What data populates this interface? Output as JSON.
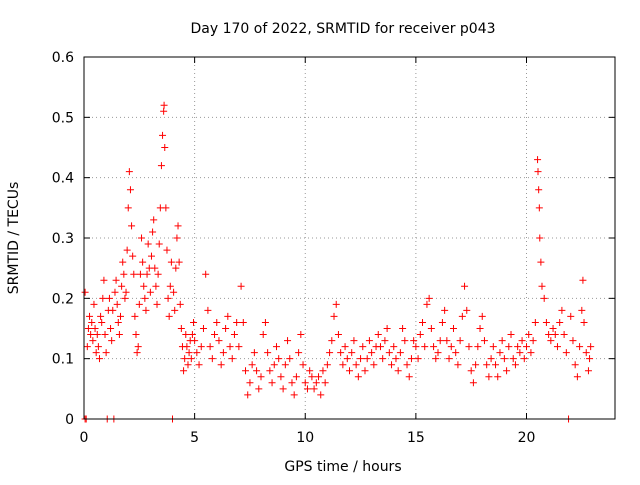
{
  "chart_data": {
    "type": "scatter",
    "title": "Day 170 of 2022, SRMTID for receiver p043",
    "xlabel": "GPS time / hours",
    "ylabel": "SRMTID / TECUs",
    "xlim": [
      0,
      24
    ],
    "ylim": [
      0,
      0.6
    ],
    "xticks": [
      0,
      5,
      10,
      15,
      20
    ],
    "yticks": [
      0,
      0.1,
      0.2,
      0.3,
      0.4,
      0.5,
      0.6
    ],
    "xtick_labels": [
      "0",
      "5",
      "10",
      "15",
      "20"
    ],
    "ytick_labels": [
      "0",
      "0.1",
      "0.2",
      "0.3",
      "0.4",
      "0.5",
      "0.6"
    ],
    "grid": true,
    "marker": "+",
    "series": [
      {
        "name": "SRMTID",
        "color": "#ff0000",
        "points": [
          [
            0.05,
            0.21
          ],
          [
            0.05,
            0.0
          ],
          [
            0.1,
            0.0
          ],
          [
            0.15,
            0.12
          ],
          [
            0.2,
            0.15
          ],
          [
            0.25,
            0.17
          ],
          [
            0.3,
            0.14
          ],
          [
            0.35,
            0.16
          ],
          [
            0.4,
            0.13
          ],
          [
            0.45,
            0.19
          ],
          [
            0.5,
            0.15
          ],
          [
            0.55,
            0.11
          ],
          [
            0.6,
            0.14
          ],
          [
            0.65,
            0.12
          ],
          [
            0.7,
            0.1
          ],
          [
            0.75,
            0.17
          ],
          [
            0.8,
            0.16
          ],
          [
            0.85,
            0.2
          ],
          [
            0.9,
            0.23
          ],
          [
            0.95,
            0.14
          ],
          [
            1.0,
            0.11
          ],
          [
            1.05,
            0.0
          ],
          [
            1.1,
            0.18
          ],
          [
            1.15,
            0.2
          ],
          [
            1.2,
            0.15
          ],
          [
            1.25,
            0.13
          ],
          [
            1.3,
            0.18
          ],
          [
            1.35,
            0.0
          ],
          [
            1.4,
            0.21
          ],
          [
            1.45,
            0.23
          ],
          [
            1.5,
            0.19
          ],
          [
            1.55,
            0.16
          ],
          [
            1.6,
            0.14
          ],
          [
            1.65,
            0.17
          ],
          [
            1.7,
            0.22
          ],
          [
            1.75,
            0.26
          ],
          [
            1.8,
            0.24
          ],
          [
            1.85,
            0.2
          ],
          [
            1.9,
            0.21
          ],
          [
            1.95,
            0.28
          ],
          [
            2.0,
            0.35
          ],
          [
            2.05,
            0.41
          ],
          [
            2.1,
            0.38
          ],
          [
            2.15,
            0.32
          ],
          [
            2.2,
            0.27
          ],
          [
            2.25,
            0.24
          ],
          [
            2.3,
            0.17
          ],
          [
            2.35,
            0.14
          ],
          [
            2.4,
            0.11
          ],
          [
            2.45,
            0.12
          ],
          [
            2.5,
            0.19
          ],
          [
            2.55,
            0.24
          ],
          [
            2.6,
            0.3
          ],
          [
            2.65,
            0.26
          ],
          [
            2.7,
            0.22
          ],
          [
            2.75,
            0.2
          ],
          [
            2.8,
            0.18
          ],
          [
            2.85,
            0.24
          ],
          [
            2.9,
            0.29
          ],
          [
            2.95,
            0.25
          ],
          [
            3.0,
            0.21
          ],
          [
            3.05,
            0.27
          ],
          [
            3.1,
            0.31
          ],
          [
            3.15,
            0.33
          ],
          [
            3.2,
            0.25
          ],
          [
            3.25,
            0.22
          ],
          [
            3.3,
            0.19
          ],
          [
            3.35,
            0.24
          ],
          [
            3.4,
            0.29
          ],
          [
            3.45,
            0.35
          ],
          [
            3.5,
            0.42
          ],
          [
            3.55,
            0.47
          ],
          [
            3.6,
            0.51
          ],
          [
            3.62,
            0.52
          ],
          [
            3.65,
            0.45
          ],
          [
            3.7,
            0.35
          ],
          [
            3.75,
            0.28
          ],
          [
            3.8,
            0.2
          ],
          [
            3.85,
            0.17
          ],
          [
            3.9,
            0.22
          ],
          [
            3.95,
            0.26
          ],
          [
            4.0,
            0.0
          ],
          [
            4.05,
            0.21
          ],
          [
            4.1,
            0.18
          ],
          [
            4.15,
            0.25
          ],
          [
            4.2,
            0.3
          ],
          [
            4.25,
            0.32
          ],
          [
            4.3,
            0.26
          ],
          [
            4.35,
            0.19
          ],
          [
            4.4,
            0.15
          ],
          [
            4.45,
            0.12
          ],
          [
            4.5,
            0.08
          ],
          [
            4.55,
            0.1
          ],
          [
            4.6,
            0.14
          ],
          [
            4.65,
            0.12
          ],
          [
            4.7,
            0.09
          ],
          [
            4.75,
            0.11
          ],
          [
            4.8,
            0.13
          ],
          [
            4.85,
            0.1
          ],
          [
            4.9,
            0.14
          ],
          [
            4.95,
            0.16
          ],
          [
            5.0,
            0.13
          ],
          [
            5.1,
            0.11
          ],
          [
            5.2,
            0.09
          ],
          [
            5.3,
            0.12
          ],
          [
            5.4,
            0.15
          ],
          [
            5.5,
            0.24
          ],
          [
            5.6,
            0.18
          ],
          [
            5.7,
            0.12
          ],
          [
            5.8,
            0.1
          ],
          [
            5.9,
            0.14
          ],
          [
            6.0,
            0.16
          ],
          [
            6.1,
            0.13
          ],
          [
            6.2,
            0.09
          ],
          [
            6.3,
            0.11
          ],
          [
            6.4,
            0.15
          ],
          [
            6.5,
            0.17
          ],
          [
            6.6,
            0.12
          ],
          [
            6.7,
            0.1
          ],
          [
            6.8,
            0.14
          ],
          [
            6.9,
            0.16
          ],
          [
            7.0,
            0.12
          ],
          [
            7.1,
            0.22
          ],
          [
            7.2,
            0.16
          ],
          [
            7.3,
            0.08
          ],
          [
            7.4,
            0.04
          ],
          [
            7.5,
            0.06
          ],
          [
            7.6,
            0.09
          ],
          [
            7.7,
            0.11
          ],
          [
            7.8,
            0.08
          ],
          [
            7.9,
            0.05
          ],
          [
            8.0,
            0.07
          ],
          [
            8.1,
            0.14
          ],
          [
            8.2,
            0.16
          ],
          [
            8.3,
            0.11
          ],
          [
            8.4,
            0.08
          ],
          [
            8.5,
            0.06
          ],
          [
            8.6,
            0.09
          ],
          [
            8.7,
            0.12
          ],
          [
            8.8,
            0.1
          ],
          [
            8.9,
            0.07
          ],
          [
            9.0,
            0.05
          ],
          [
            9.1,
            0.09
          ],
          [
            9.2,
            0.13
          ],
          [
            9.3,
            0.1
          ],
          [
            9.4,
            0.06
          ],
          [
            9.5,
            0.04
          ],
          [
            9.6,
            0.07
          ],
          [
            9.7,
            0.11
          ],
          [
            9.8,
            0.14
          ],
          [
            9.9,
            0.09
          ],
          [
            10.0,
            0.06
          ],
          [
            10.1,
            0.05
          ],
          [
            10.2,
            0.08
          ],
          [
            10.3,
            0.07
          ],
          [
            10.4,
            0.05
          ],
          [
            10.5,
            0.06
          ],
          [
            10.6,
            0.07
          ],
          [
            10.7,
            0.04
          ],
          [
            10.8,
            0.08
          ],
          [
            10.9,
            0.06
          ],
          [
            11.0,
            0.09
          ],
          [
            11.1,
            0.11
          ],
          [
            11.2,
            0.13
          ],
          [
            11.3,
            0.17
          ],
          [
            11.4,
            0.19
          ],
          [
            11.5,
            0.14
          ],
          [
            11.6,
            0.11
          ],
          [
            11.7,
            0.09
          ],
          [
            11.8,
            0.12
          ],
          [
            11.9,
            0.1
          ],
          [
            12.0,
            0.08
          ],
          [
            12.1,
            0.11
          ],
          [
            12.2,
            0.13
          ],
          [
            12.3,
            0.09
          ],
          [
            12.4,
            0.07
          ],
          [
            12.5,
            0.1
          ],
          [
            12.6,
            0.12
          ],
          [
            12.7,
            0.08
          ],
          [
            12.8,
            0.1
          ],
          [
            12.9,
            0.13
          ],
          [
            13.0,
            0.11
          ],
          [
            13.1,
            0.09
          ],
          [
            13.2,
            0.12
          ],
          [
            13.3,
            0.14
          ],
          [
            13.4,
            0.12
          ],
          [
            13.5,
            0.1
          ],
          [
            13.6,
            0.13
          ],
          [
            13.7,
            0.15
          ],
          [
            13.8,
            0.11
          ],
          [
            13.9,
            0.09
          ],
          [
            14.0,
            0.12
          ],
          [
            14.1,
            0.1
          ],
          [
            14.2,
            0.08
          ],
          [
            14.3,
            0.11
          ],
          [
            14.4,
            0.15
          ],
          [
            14.5,
            0.13
          ],
          [
            14.6,
            0.09
          ],
          [
            14.7,
            0.07
          ],
          [
            14.8,
            0.1
          ],
          [
            14.9,
            0.13
          ],
          [
            15.0,
            0.12
          ],
          [
            15.1,
            0.1
          ],
          [
            15.2,
            0.14
          ],
          [
            15.3,
            0.16
          ],
          [
            15.4,
            0.12
          ],
          [
            15.5,
            0.19
          ],
          [
            15.6,
            0.2
          ],
          [
            15.7,
            0.15
          ],
          [
            15.8,
            0.12
          ],
          [
            15.9,
            0.1
          ],
          [
            16.0,
            0.11
          ],
          [
            16.1,
            0.13
          ],
          [
            16.2,
            0.16
          ],
          [
            16.3,
            0.18
          ],
          [
            16.4,
            0.13
          ],
          [
            16.5,
            0.1
          ],
          [
            16.6,
            0.12
          ],
          [
            16.7,
            0.15
          ],
          [
            16.8,
            0.11
          ],
          [
            16.9,
            0.09
          ],
          [
            17.0,
            0.13
          ],
          [
            17.1,
            0.17
          ],
          [
            17.2,
            0.22
          ],
          [
            17.3,
            0.18
          ],
          [
            17.4,
            0.12
          ],
          [
            17.5,
            0.08
          ],
          [
            17.6,
            0.06
          ],
          [
            17.7,
            0.09
          ],
          [
            17.8,
            0.12
          ],
          [
            17.9,
            0.15
          ],
          [
            18.0,
            0.17
          ],
          [
            18.1,
            0.13
          ],
          [
            18.2,
            0.09
          ],
          [
            18.3,
            0.07
          ],
          [
            18.4,
            0.1
          ],
          [
            18.5,
            0.12
          ],
          [
            18.6,
            0.09
          ],
          [
            18.7,
            0.07
          ],
          [
            18.8,
            0.11
          ],
          [
            18.9,
            0.13
          ],
          [
            19.0,
            0.1
          ],
          [
            19.1,
            0.08
          ],
          [
            19.2,
            0.12
          ],
          [
            19.3,
            0.14
          ],
          [
            19.4,
            0.1
          ],
          [
            19.5,
            0.09
          ],
          [
            19.6,
            0.12
          ],
          [
            19.7,
            0.11
          ],
          [
            19.8,
            0.13
          ],
          [
            19.9,
            0.1
          ],
          [
            20.0,
            0.12
          ],
          [
            20.1,
            0.14
          ],
          [
            20.2,
            0.11
          ],
          [
            20.3,
            0.13
          ],
          [
            20.4,
            0.16
          ],
          [
            20.5,
            0.43
          ],
          [
            20.52,
            0.41
          ],
          [
            20.55,
            0.38
          ],
          [
            20.58,
            0.35
          ],
          [
            20.6,
            0.3
          ],
          [
            20.65,
            0.26
          ],
          [
            20.7,
            0.22
          ],
          [
            20.8,
            0.2
          ],
          [
            20.9,
            0.16
          ],
          [
            21.0,
            0.14
          ],
          [
            21.1,
            0.13
          ],
          [
            21.2,
            0.15
          ],
          [
            21.3,
            0.14
          ],
          [
            21.4,
            0.12
          ],
          [
            21.5,
            0.16
          ],
          [
            21.6,
            0.18
          ],
          [
            21.7,
            0.14
          ],
          [
            21.8,
            0.11
          ],
          [
            21.9,
            0.0
          ],
          [
            22.0,
            0.17
          ],
          [
            22.1,
            0.13
          ],
          [
            22.2,
            0.09
          ],
          [
            22.3,
            0.07
          ],
          [
            22.4,
            0.12
          ],
          [
            22.5,
            0.18
          ],
          [
            22.55,
            0.23
          ],
          [
            22.6,
            0.16
          ],
          [
            22.7,
            0.11
          ],
          [
            22.8,
            0.08
          ],
          [
            22.85,
            0.1
          ],
          [
            22.9,
            0.12
          ]
        ]
      }
    ]
  }
}
